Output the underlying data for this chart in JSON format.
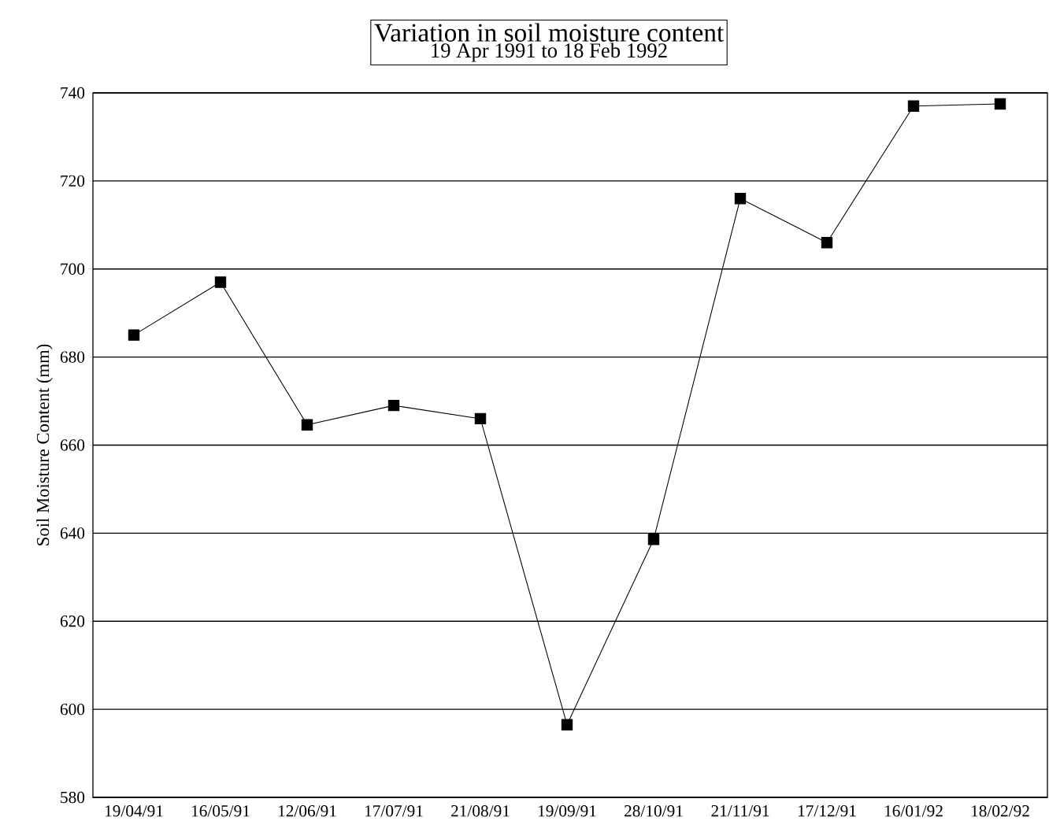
{
  "chart_data": {
    "type": "line",
    "title": "Variation in soil moisture content",
    "subtitle": "19 Apr 1991 to 18 Feb 1992",
    "ylabel": "Soil Moisture Content (mm)",
    "categories": [
      "19/04/91",
      "16/05/91",
      "12/06/91",
      "17/07/91",
      "21/08/91",
      "19/09/91",
      "28/10/91",
      "21/11/91",
      "17/12/91",
      "16/01/92",
      "18/02/92"
    ],
    "series": [
      {
        "color": "#000000",
        "values": [
          685,
          697,
          664.6,
          669,
          666,
          596.5,
          638.6,
          716,
          706,
          737,
          737.5
        ]
      }
    ],
    "ylim": [
      580,
      740
    ],
    "yticks": [
      580,
      600,
      620,
      640,
      660,
      680,
      700,
      720,
      740
    ],
    "grid": "y",
    "marker": "square",
    "line_style": "solid"
  }
}
